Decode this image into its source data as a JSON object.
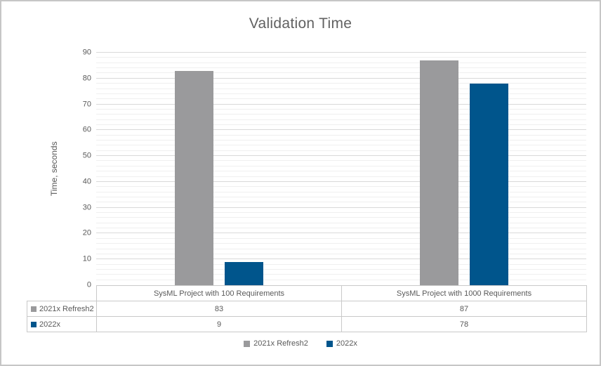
{
  "chart_data": {
    "type": "bar",
    "title": "Validation Time",
    "ylabel": "Time, seconds",
    "xlabel": "",
    "categories": [
      "SysML Project with 100 Requirements",
      "SysML Project with 1000 Requirements"
    ],
    "series": [
      {
        "name": "2021x Refresh2",
        "color": "#9A9A9C",
        "values": [
          83,
          87
        ]
      },
      {
        "name": "2022x",
        "color": "#00558C",
        "values": [
          9,
          78
        ]
      }
    ],
    "ylim": [
      0,
      90
    ],
    "y_tick_labels": [
      "0",
      "10",
      "20",
      "30",
      "40",
      "50",
      "60",
      "70",
      "80",
      "90"
    ],
    "y_major_unit": 10,
    "y_minor_unit": 2,
    "grid": "on",
    "legend_position": "bottom",
    "data_table_shown": true
  },
  "colors": {
    "series_gray": "#9A9A9C",
    "series_blue": "#00558C",
    "major_gridline": "#D9D9D9",
    "minor_gridline": "#EFEFEF",
    "table_border": "#C9C9C9",
    "text": "#595959",
    "title_text": "#616161",
    "frame_border": "#C6C6C6"
  }
}
